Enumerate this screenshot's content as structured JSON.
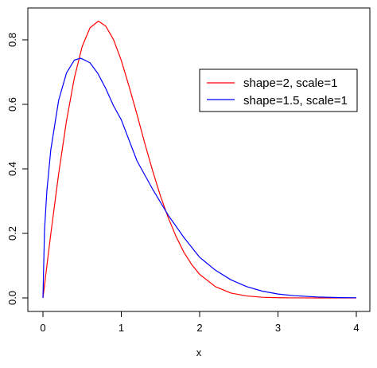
{
  "chart_data": {
    "type": "line",
    "xlabel": "x",
    "ylabel": "",
    "xlim": [
      0,
      4
    ],
    "ylim": [
      0,
      0.86
    ],
    "x_ticks": [
      "0",
      "1",
      "2",
      "3",
      "4"
    ],
    "y_ticks": [
      "0.0",
      "0.2",
      "0.4",
      "0.6",
      "0.8"
    ],
    "grid": false,
    "legend_position": "top-right",
    "series": [
      {
        "name": "shape=2, scale=1",
        "color": "#ff0000",
        "x": [
          0,
          0.1,
          0.2,
          0.3,
          0.4,
          0.5,
          0.6,
          0.707,
          0.8,
          0.9,
          1.0,
          1.1,
          1.2,
          1.3,
          1.4,
          1.5,
          1.6,
          1.7,
          1.8,
          1.9,
          2.0,
          2.2,
          2.4,
          2.6,
          2.8,
          3.0,
          3.2,
          3.5,
          4.0
        ],
        "y": [
          0,
          0.198,
          0.384,
          0.548,
          0.681,
          0.779,
          0.837,
          0.858,
          0.843,
          0.801,
          0.736,
          0.655,
          0.569,
          0.479,
          0.394,
          0.316,
          0.248,
          0.19,
          0.141,
          0.103,
          0.073,
          0.035,
          0.015,
          0.006,
          0.002,
          0.0007,
          0.0002,
          2e-05,
          0
        ]
      },
      {
        "name": "shape=1.5, scale=1",
        "color": "#0000ff",
        "x": [
          0,
          0.02,
          0.05,
          0.1,
          0.2,
          0.3,
          0.4,
          0.481,
          0.6,
          0.7,
          0.8,
          0.9,
          1.0,
          1.2,
          1.4,
          1.6,
          1.8,
          2.0,
          2.2,
          2.4,
          2.6,
          2.8,
          3.0,
          3.2,
          3.5,
          3.8,
          4.0
        ],
        "y": [
          0,
          0.211,
          0.331,
          0.459,
          0.612,
          0.697,
          0.737,
          0.743,
          0.729,
          0.696,
          0.65,
          0.596,
          0.552,
          0.425,
          0.337,
          0.256,
          0.187,
          0.126,
          0.086,
          0.056,
          0.035,
          0.021,
          0.012,
          0.007,
          0.003,
          0.001,
          0.0005
        ]
      }
    ]
  }
}
